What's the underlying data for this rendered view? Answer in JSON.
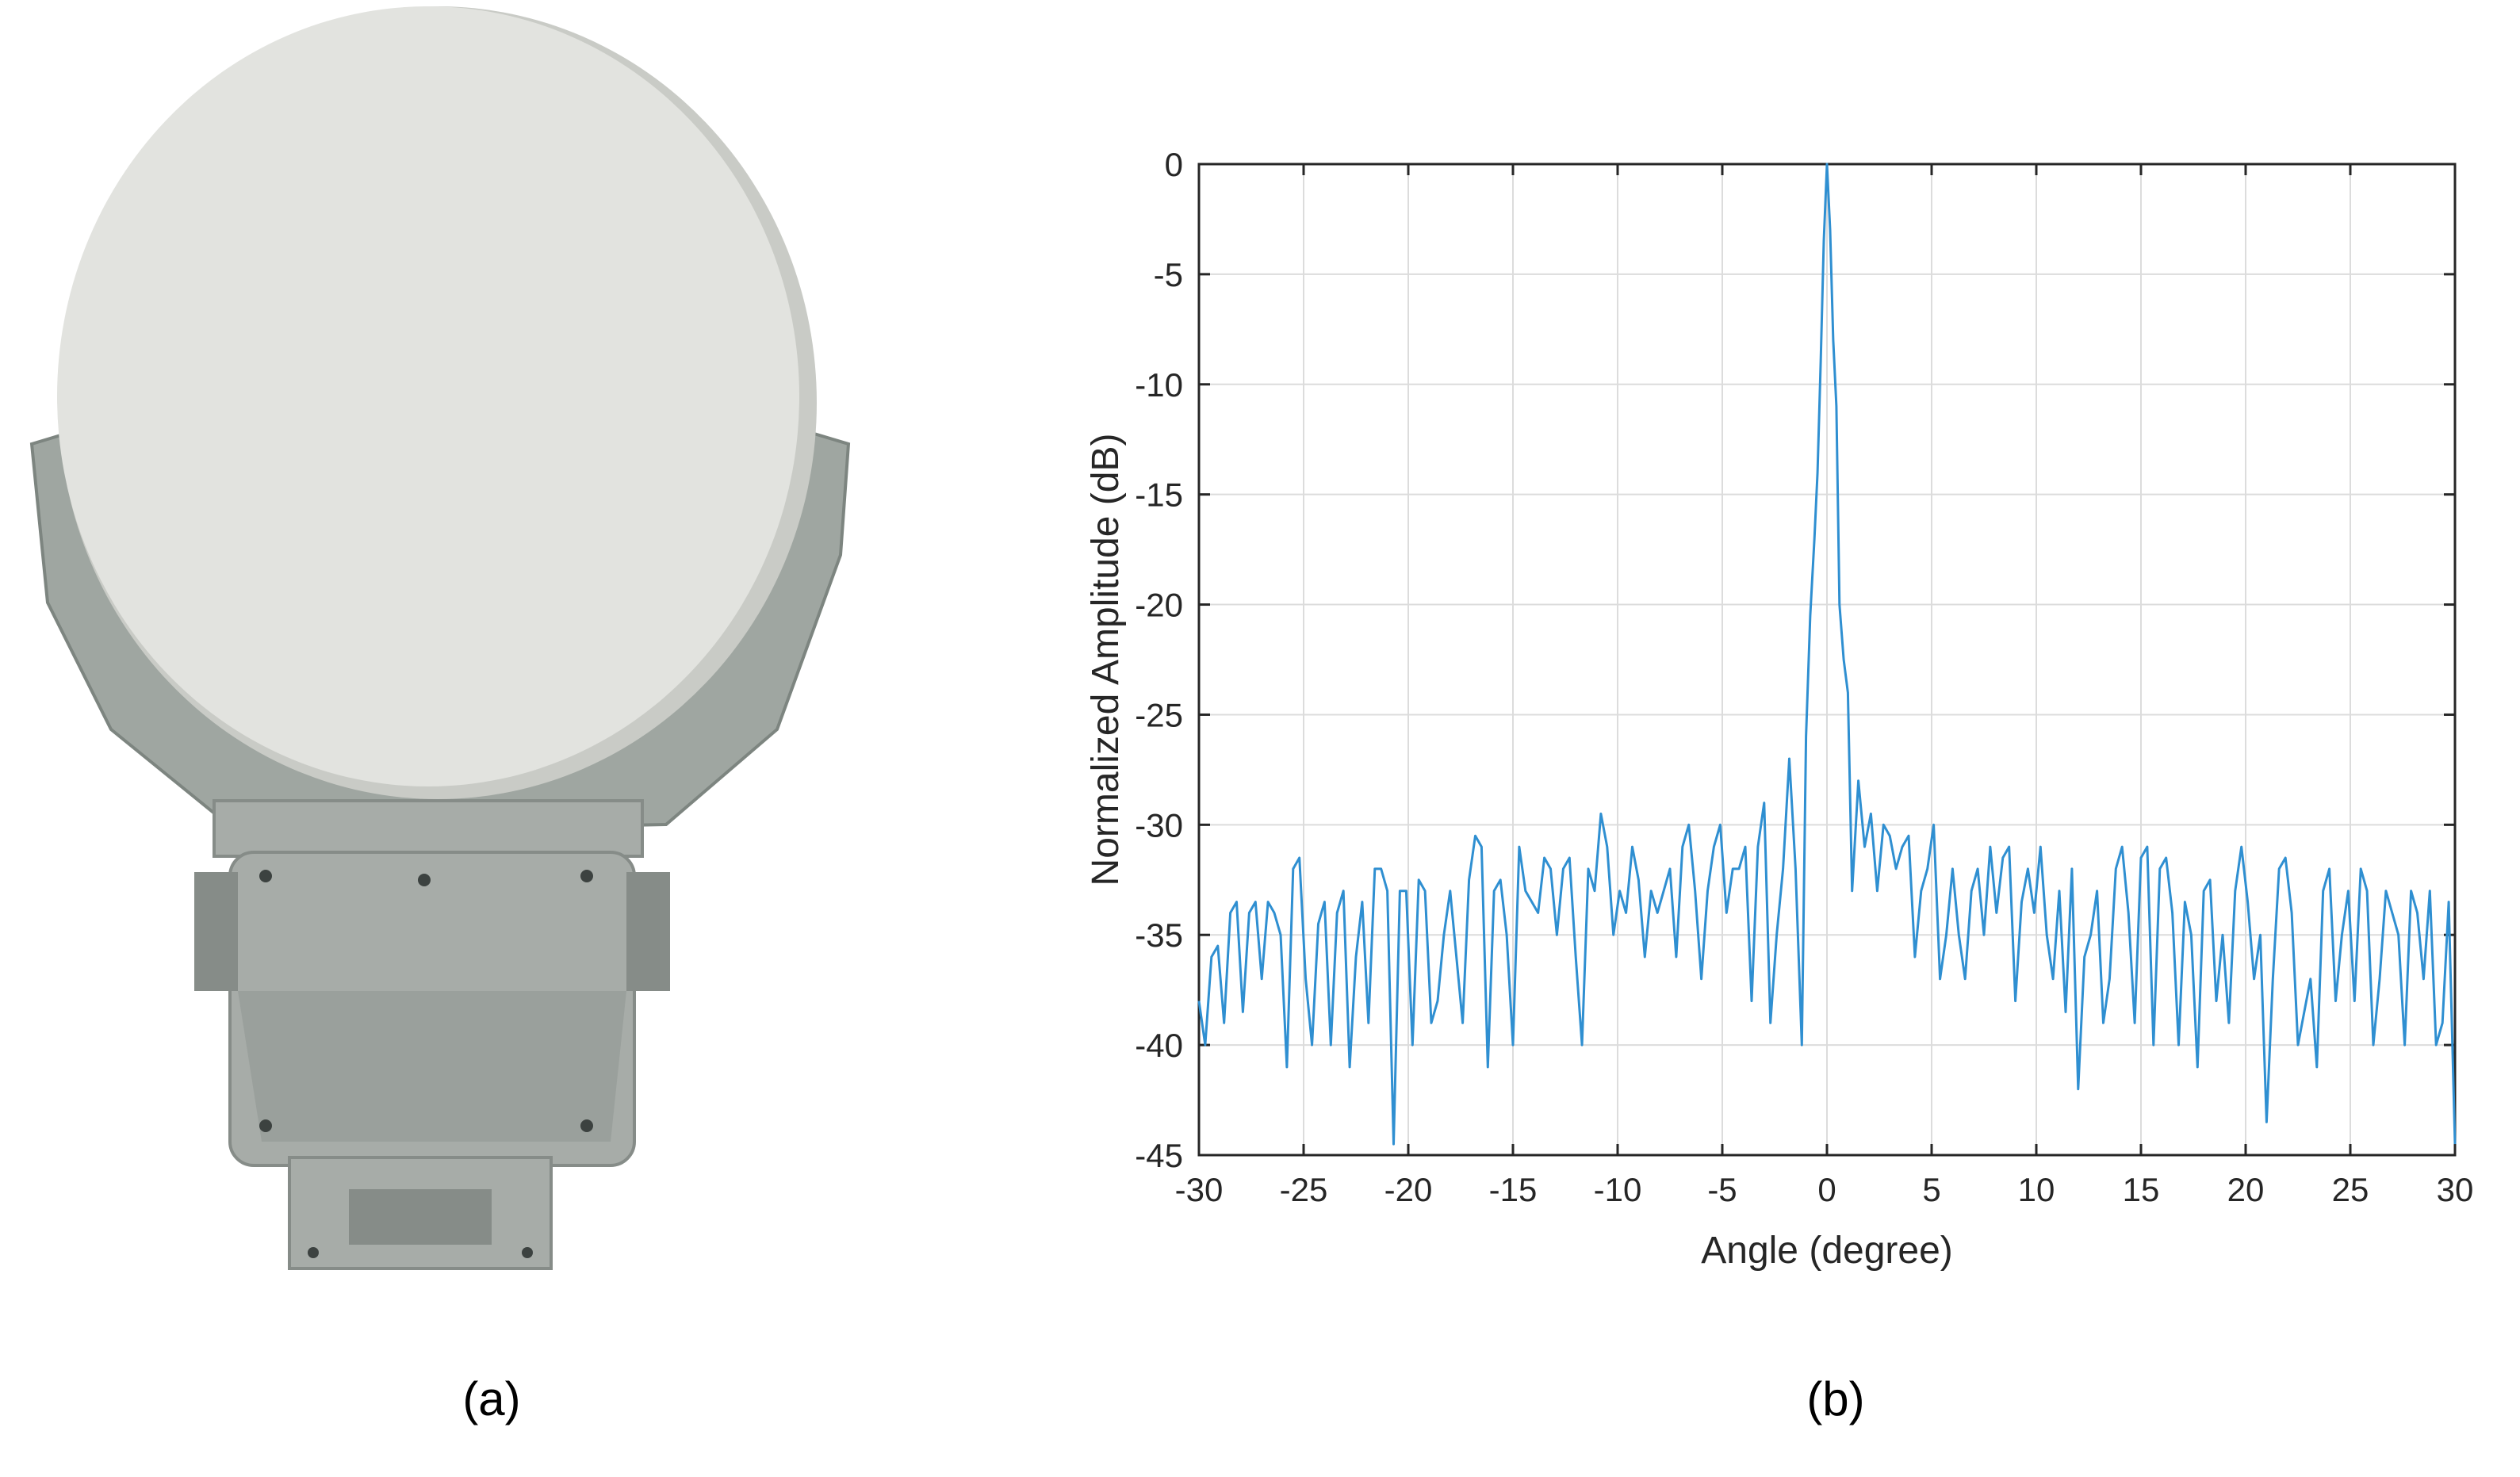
{
  "captions": {
    "a": "(a)",
    "b": "(b)"
  },
  "photo": {
    "subject": "antenna-radome-on-pan-tilt-mount",
    "colors": {
      "radome": "#e2e3df",
      "radome_shade": "#c9cbc6",
      "frame": "#9fa6a1",
      "frame_dark": "#7d8580",
      "body": "#a7aca8",
      "body_dark": "#868c88",
      "bolt": "#3c4240"
    }
  },
  "chart_data": {
    "type": "line",
    "title": "",
    "xlabel": "Angle (degree)",
    "ylabel": "Normalized Amplitude (dB)",
    "xlim": [
      -30,
      30
    ],
    "ylim": [
      -45,
      0
    ],
    "xticks": [
      -30,
      -25,
      -20,
      -15,
      -10,
      -5,
      0,
      5,
      10,
      15,
      20,
      25,
      30
    ],
    "yticks": [
      0,
      -5,
      -10,
      -15,
      -20,
      -25,
      -30,
      -35,
      -40,
      -45
    ],
    "grid": true,
    "line_color": "#2f8fd1",
    "series": [
      {
        "name": "",
        "x": [
          -30,
          -29.7,
          -29.4,
          -29.1,
          -28.8,
          -28.5,
          -28.2,
          -27.9,
          -27.6,
          -27.3,
          -27,
          -26.7,
          -26.4,
          -26.1,
          -25.8,
          -25.5,
          -25.2,
          -24.9,
          -24.6,
          -24.3,
          -24,
          -23.7,
          -23.4,
          -23.1,
          -22.8,
          -22.5,
          -22.2,
          -21.9,
          -21.6,
          -21.3,
          -21,
          -20.7,
          -20.4,
          -20.1,
          -19.8,
          -19.5,
          -19.2,
          -18.9,
          -18.6,
          -18.3,
          -18,
          -17.7,
          -17.4,
          -17.1,
          -16.8,
          -16.5,
          -16.2,
          -15.9,
          -15.6,
          -15.3,
          -15,
          -14.7,
          -14.4,
          -14.1,
          -13.8,
          -13.5,
          -13.2,
          -12.9,
          -12.6,
          -12.3,
          -12,
          -11.7,
          -11.4,
          -11.1,
          -10.8,
          -10.5,
          -10.2,
          -9.9,
          -9.6,
          -9.3,
          -9,
          -8.7,
          -8.4,
          -8.1,
          -7.8,
          -7.5,
          -7.2,
          -6.9,
          -6.6,
          -6.3,
          -6,
          -5.7,
          -5.4,
          -5.1,
          -4.8,
          -4.5,
          -4.2,
          -3.9,
          -3.6,
          -3.3,
          -3,
          -2.7,
          -2.4,
          -2.1,
          -1.8,
          -1.5,
          -1.2,
          -1,
          -0.8,
          -0.6,
          -0.45,
          -0.3,
          -0.15,
          0,
          0.15,
          0.3,
          0.45,
          0.6,
          0.8,
          1,
          1.2,
          1.5,
          1.8,
          2.1,
          2.4,
          2.7,
          3,
          3.3,
          3.6,
          3.9,
          4.2,
          4.5,
          4.8,
          5.1,
          5.4,
          5.7,
          6,
          6.3,
          6.6,
          6.9,
          7.2,
          7.5,
          7.8,
          8.1,
          8.4,
          8.7,
          9,
          9.3,
          9.6,
          9.9,
          10.2,
          10.5,
          10.8,
          11.1,
          11.4,
          11.7,
          12,
          12.3,
          12.6,
          12.9,
          13.2,
          13.5,
          13.8,
          14.1,
          14.4,
          14.7,
          15,
          15.3,
          15.6,
          15.9,
          16.2,
          16.5,
          16.8,
          17.1,
          17.4,
          17.7,
          18,
          18.3,
          18.6,
          18.9,
          19.2,
          19.5,
          19.8,
          20.1,
          20.4,
          20.7,
          21,
          21.3,
          21.6,
          21.9,
          22.2,
          22.5,
          22.8,
          23.1,
          23.4,
          23.7,
          24,
          24.3,
          24.6,
          24.9,
          25.2,
          25.5,
          25.8,
          26.1,
          26.4,
          26.7,
          27,
          27.3,
          27.6,
          27.9,
          28.2,
          28.5,
          28.8,
          29.1,
          29.4,
          29.7,
          30
        ],
        "y": [
          -38,
          -40,
          -36,
          -35.5,
          -39,
          -34,
          -33.5,
          -38.5,
          -34,
          -33.5,
          -37,
          -33.5,
          -34,
          -35,
          -41,
          -32,
          -31.5,
          -37,
          -40,
          -34.5,
          -33.5,
          -40,
          -34,
          -33,
          -41,
          -36,
          -33.5,
          -39,
          -32,
          -32,
          -33,
          -44.5,
          -33,
          -33,
          -40,
          -32.5,
          -33,
          -39,
          -38,
          -35,
          -33,
          -36,
          -39,
          -32.5,
          -30.5,
          -31,
          -41,
          -33,
          -32.5,
          -35,
          -40,
          -31,
          -33,
          -33.5,
          -34,
          -31.5,
          -32,
          -35,
          -32,
          -31.5,
          -36,
          -40,
          -32,
          -33,
          -29.5,
          -31,
          -35,
          -33,
          -34,
          -31,
          -32.5,
          -36,
          -33,
          -34,
          -33,
          -32,
          -36,
          -31,
          -30,
          -33,
          -37,
          -33,
          -31,
          -30,
          -34,
          -32,
          -32,
          -31,
          -38,
          -31,
          -29,
          -39,
          -35,
          -32,
          -27,
          -32,
          -40,
          -26,
          -20.5,
          -17,
          -14,
          -9,
          -3.5,
          0,
          -3,
          -8,
          -11,
          -20,
          -22.5,
          -24,
          -33,
          -28,
          -31,
          -29.5,
          -33,
          -30,
          -30.5,
          -32,
          -31,
          -30.5,
          -36,
          -33,
          -32,
          -30,
          -37,
          -35,
          -32,
          -35,
          -37,
          -33,
          -32,
          -35,
          -31,
          -34,
          -31.5,
          -31,
          -38,
          -33.5,
          -32,
          -34,
          -31,
          -35,
          -37,
          -33,
          -38.5,
          -32,
          -42,
          -36,
          -35,
          -33,
          -39,
          -37,
          -32,
          -31,
          -34,
          -39,
          -31.5,
          -31,
          -40,
          -32,
          -31.5,
          -34,
          -40,
          -33.5,
          -35,
          -41,
          -33,
          -32.5,
          -38,
          -35,
          -39,
          -33,
          -31,
          -33.5,
          -37,
          -35,
          -43.5,
          -37,
          -32,
          -31.5,
          -34,
          -40,
          -38.5,
          -37,
          -41,
          -33,
          -32,
          -38,
          -35,
          -33,
          -38,
          -32,
          -33,
          -40,
          -37,
          -33,
          -34,
          -35,
          -40,
          -33,
          -34,
          -37,
          -33,
          -40,
          -39,
          -33.5,
          -44.5
        ]
      }
    ]
  }
}
